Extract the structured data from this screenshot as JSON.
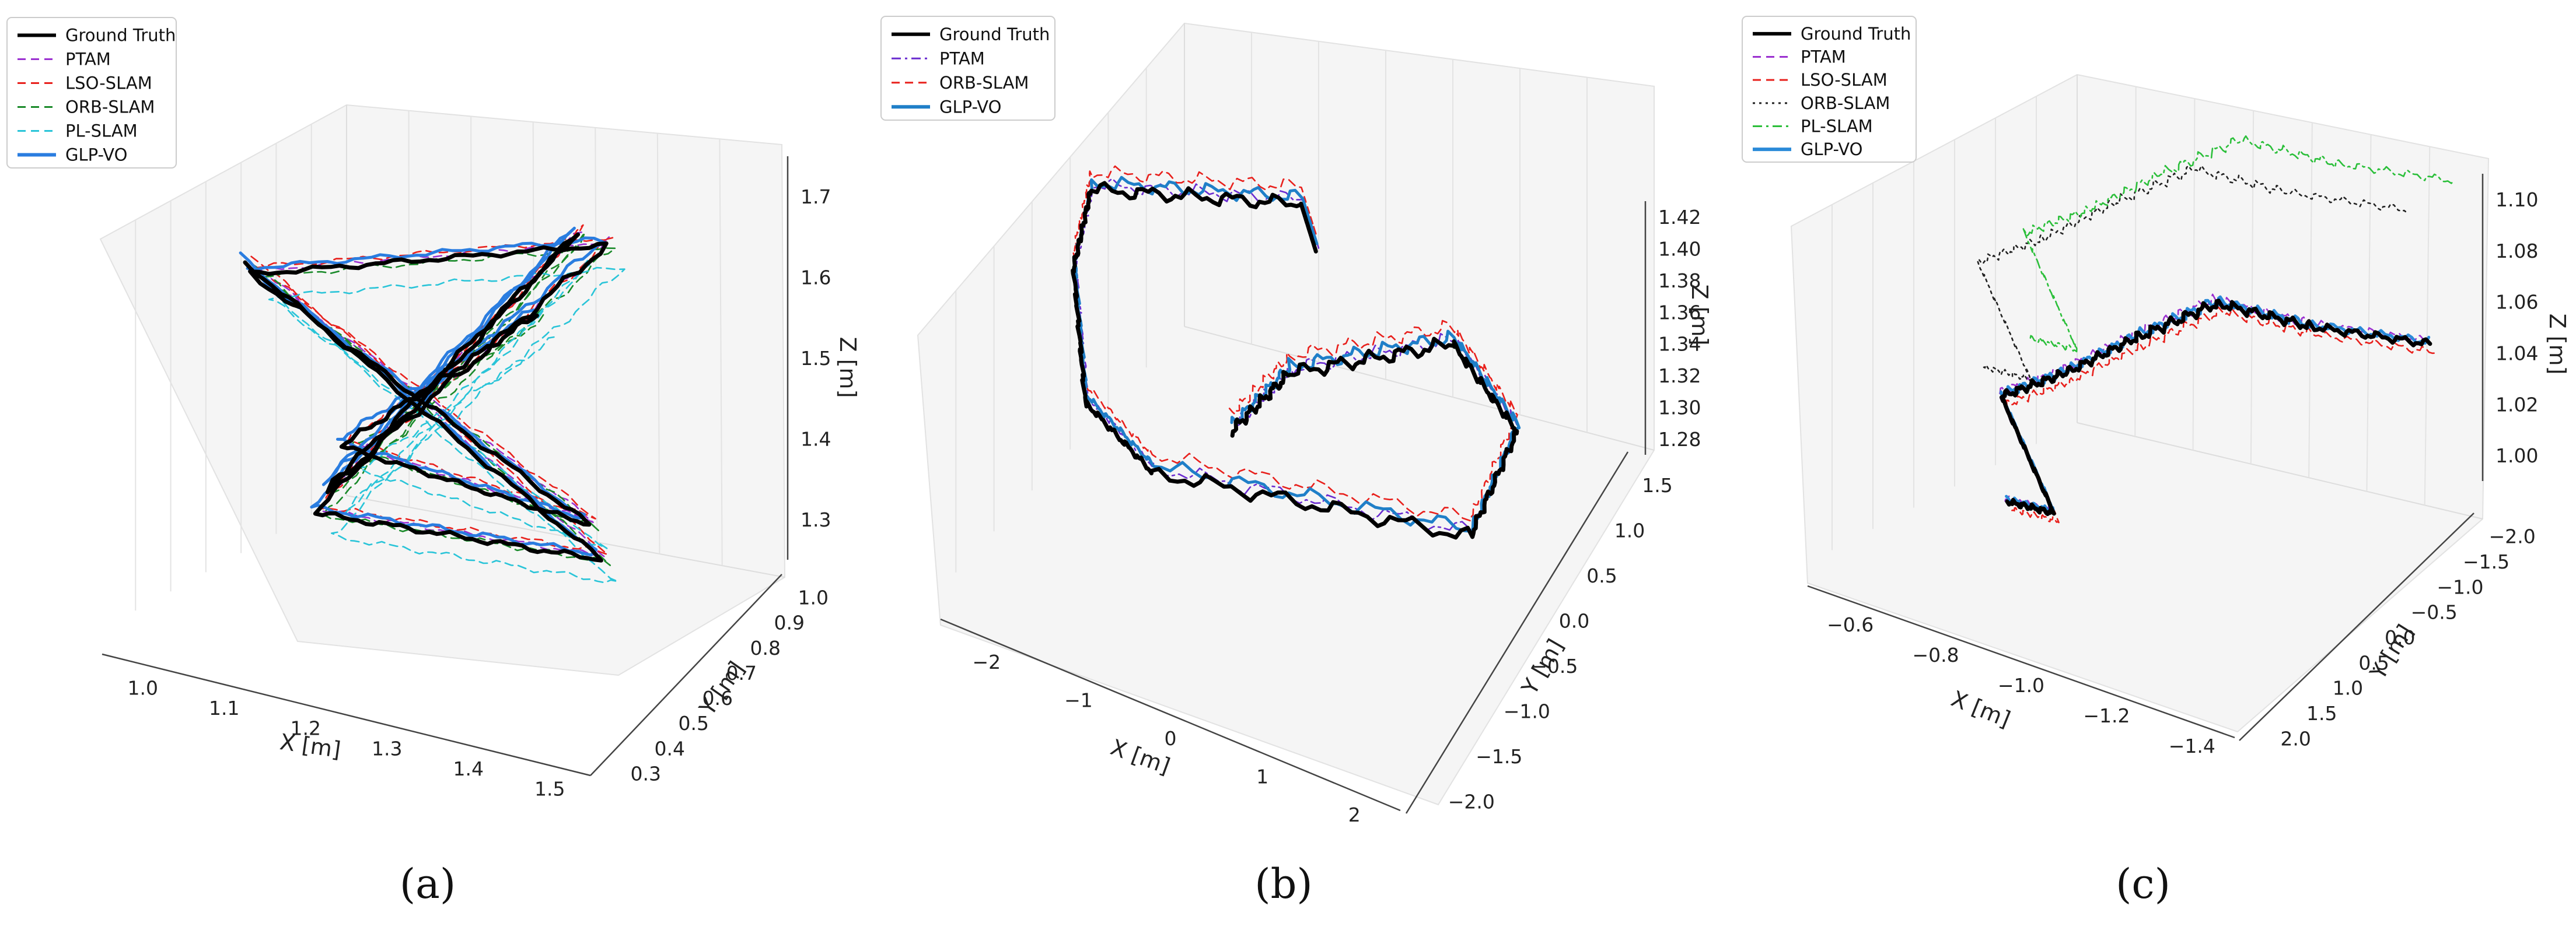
{
  "chart_data": [
    {
      "type": "line3d",
      "panel_label": "(a)",
      "xlabel": "X [m]",
      "ylabel": "Y [m]",
      "zlabel": "Z [m]",
      "x_ticks": [
        "1.0",
        "1.1",
        "1.2",
        "1.3",
        "1.4",
        "1.5"
      ],
      "y_ticks": [
        "0.3",
        "0.4",
        "0.5",
        "0.6",
        "0.7",
        "0.8",
        "0.9",
        "1.0"
      ],
      "z_ticks": [
        "1.3",
        "1.4",
        "1.5",
        "1.6",
        "1.7"
      ],
      "xlim": [
        0.95,
        1.55
      ],
      "ylim": [
        0.25,
        1.0
      ],
      "zlim": [
        1.3,
        1.75
      ],
      "grid": true,
      "legend_position": "top-left",
      "series": [
        {
          "name": "Ground Truth",
          "color": "#000000",
          "style": "solid"
        },
        {
          "name": "PTAM",
          "color": "#9b30d0",
          "style": "dashed"
        },
        {
          "name": "LSO-SLAM",
          "color": "#e8201c",
          "style": "dashed"
        },
        {
          "name": "ORB-SLAM",
          "color": "#1a8a2a",
          "style": "dashed"
        },
        {
          "name": "PL-SLAM",
          "color": "#29c4d8",
          "style": "dashed"
        },
        {
          "name": "GLP-VO",
          "color": "#2a7de0",
          "style": "solid"
        }
      ]
    },
    {
      "type": "line3d",
      "panel_label": "(b)",
      "xlabel": "X [m]",
      "ylabel": "Y [m]",
      "zlabel": "Z [m]",
      "x_ticks": [
        "−2",
        "−1",
        "0",
        "1",
        "2"
      ],
      "y_ticks": [
        "−2.0",
        "−1.5",
        "−1.0",
        "−0.5",
        "0.0",
        "0.5",
        "1.0",
        "1.5"
      ],
      "z_ticks": [
        "1.28",
        "1.30",
        "1.32",
        "1.34",
        "1.36",
        "1.38",
        "1.40",
        "1.42"
      ],
      "xlim": [
        -2.2,
        2.6
      ],
      "ylim": [
        -2.0,
        1.7
      ],
      "zlim": [
        1.27,
        1.43
      ],
      "grid": true,
      "legend_position": "top-left",
      "series": [
        {
          "name": "Ground Truth",
          "color": "#000000",
          "style": "solid"
        },
        {
          "name": "PTAM",
          "color": "#6a2cd0",
          "style": "dashdot"
        },
        {
          "name": "ORB-SLAM",
          "color": "#e8201c",
          "style": "dashed"
        },
        {
          "name": "GLP-VO",
          "color": "#1f7fc8",
          "style": "solid"
        }
      ]
    },
    {
      "type": "line3d",
      "panel_label": "(c)",
      "xlabel": "X [m]",
      "ylabel": "Y [m]",
      "zlabel": "Z [m]",
      "x_ticks": [
        "−0.6",
        "−0.8",
        "−1.0",
        "−1.2",
        "−1.4"
      ],
      "y_ticks": [
        "2.0",
        "1.5",
        "1.0",
        "0.5",
        "0.0",
        "−0.5",
        "−1.0",
        "−1.5",
        "−2.0"
      ],
      "z_ticks": [
        "1.00",
        "1.02",
        "1.04",
        "1.06",
        "1.08",
        "1.10"
      ],
      "xlim": [
        -0.55,
        -1.5
      ],
      "ylim": [
        2.0,
        -2.0
      ],
      "zlim": [
        0.99,
        1.11
      ],
      "grid": true,
      "legend_position": "top-left",
      "series": [
        {
          "name": "Ground Truth",
          "color": "#000000",
          "style": "solid"
        },
        {
          "name": "PTAM",
          "color": "#9b30d0",
          "style": "dashed"
        },
        {
          "name": "LSO-SLAM",
          "color": "#e8201c",
          "style": "dashed"
        },
        {
          "name": "ORB-SLAM",
          "color": "#222222",
          "style": "dotted"
        },
        {
          "name": "PL-SLAM",
          "color": "#2bbf3a",
          "style": "dashdot"
        },
        {
          "name": "GLP-VO",
          "color": "#2a8ad8",
          "style": "solid"
        }
      ]
    }
  ]
}
